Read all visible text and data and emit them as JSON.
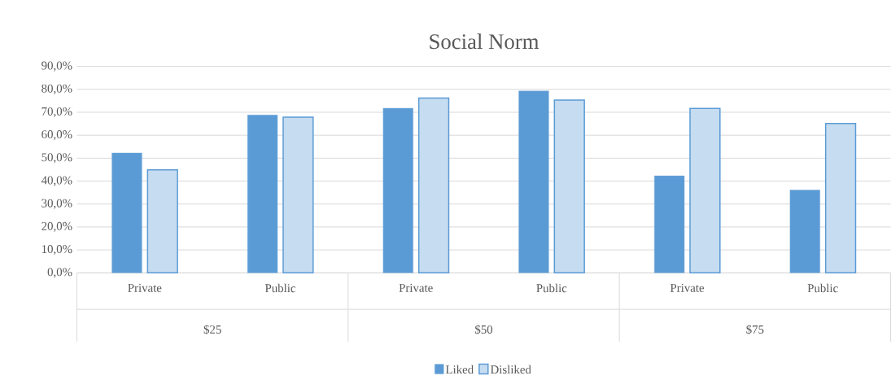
{
  "chart_data": {
    "type": "bar",
    "title": "Social Norm",
    "categories": [
      "Private",
      "Public",
      "Private",
      "Public",
      "Private",
      "Public"
    ],
    "annotations": [
      "$25",
      "$50",
      "$75"
    ],
    "series": [
      {
        "name": "Liked",
        "color": "#5b9bd5",
        "values": [
          52.3,
          68.8,
          71.8,
          79.3,
          42.3,
          36.1
        ]
      },
      {
        "name": "Disliked",
        "color": "#5b9bd5",
        "values": [
          44.9,
          67.9,
          76.2,
          75.3,
          71.7,
          65.1
        ]
      }
    ],
    "ylim": [
      0,
      90
    ],
    "yticks": [
      {
        "value": 0,
        "label": "0,0%"
      },
      {
        "value": 10,
        "label": "10,0%"
      },
      {
        "value": 20,
        "label": "20,0%"
      },
      {
        "value": 30,
        "label": "30,0%"
      },
      {
        "value": 40,
        "label": "40,0%"
      },
      {
        "value": 50,
        "label": "50,0%"
      },
      {
        "value": 60,
        "label": "60,0%"
      },
      {
        "value": 70,
        "label": "70,0%"
      },
      {
        "value": 80,
        "label": "80,0%"
      },
      {
        "value": 90,
        "label": "90,0%"
      }
    ],
    "grid": "y",
    "legend": "bottom"
  }
}
